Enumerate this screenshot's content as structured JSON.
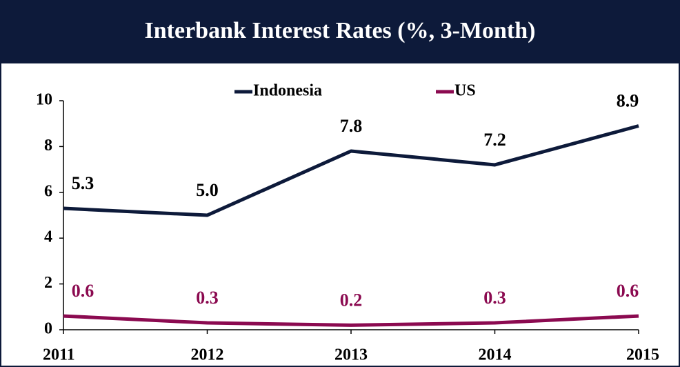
{
  "chart_data": {
    "type": "line",
    "title": "Interbank Interest Rates (%, 3-Month)",
    "categories": [
      "2011",
      "2012",
      "2013",
      "2014",
      "2015"
    ],
    "series": [
      {
        "name": "Indonesia",
        "color": "#0d1a3a",
        "label_color": "#000000",
        "values": [
          5.3,
          5.0,
          7.8,
          7.2,
          8.9
        ],
        "value_labels": [
          "5.3",
          "5.0",
          "7.8",
          "7.2",
          "8.9"
        ]
      },
      {
        "name": "US",
        "color": "#8b0a50",
        "label_color": "#8b0a50",
        "values": [
          0.6,
          0.3,
          0.2,
          0.3,
          0.6
        ]
      }
    ],
    "ylim": [
      0,
      10
    ],
    "yticks": [
      0,
      2,
      4,
      6,
      8,
      10
    ],
    "legend": "top",
    "grid": false
  }
}
